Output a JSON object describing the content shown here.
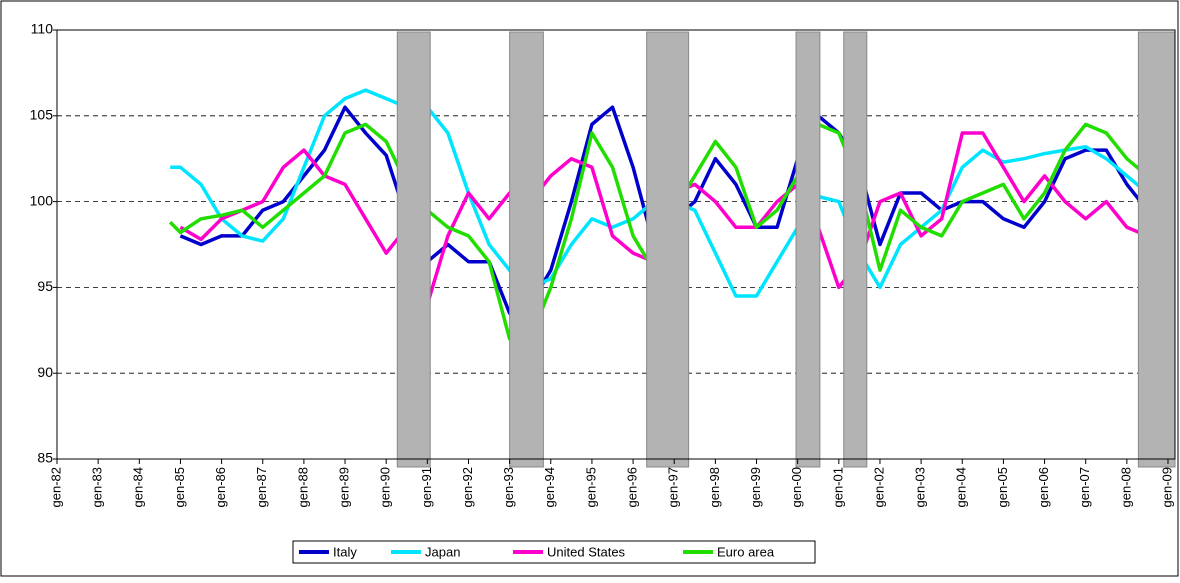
{
  "chart_data": {
    "type": "line",
    "x": [
      1984.75,
      1985,
      1985.5,
      1986,
      1986.5,
      1987,
      1987.5,
      1988,
      1988.5,
      1989,
      1989.5,
      1990,
      1990.5,
      1991,
      1991.5,
      1992,
      1992.5,
      1993,
      1993.5,
      1994,
      1994.5,
      1995,
      1995.5,
      1996,
      1996.5,
      1997,
      1997.5,
      1998,
      1998.5,
      1999,
      1999.5,
      2000,
      2000.5,
      2001,
      2001.5,
      2002,
      2002.5,
      2003,
      2003.5,
      2004,
      2004.5,
      2005,
      2005.5,
      2006,
      2006.5,
      2007,
      2007.5,
      2008,
      2008.5
    ],
    "series": [
      {
        "name": "Italy",
        "color": "#0000cc",
        "values": [
          null,
          98,
          97.5,
          98,
          98,
          99.5,
          100,
          101.5,
          103,
          105.5,
          104,
          102.7,
          99,
          96.5,
          97.5,
          96.5,
          96.5,
          93.5,
          94,
          96,
          100,
          104.5,
          105.5,
          102,
          97.5,
          99,
          100,
          102.5,
          101,
          98.5,
          98.5,
          102.5,
          105,
          104,
          102,
          97.5,
          100.5,
          100.5,
          99.5,
          100,
          100,
          99,
          98.5,
          100,
          102.5,
          103,
          103,
          101,
          99.5
        ]
      },
      {
        "name": "Japan",
        "color": "#00e5ff",
        "values": [
          102,
          102,
          101,
          99,
          98,
          97.7,
          99,
          102,
          105,
          106,
          106.5,
          106,
          105.5,
          105.5,
          104,
          100.5,
          97.5,
          96,
          95,
          95.5,
          97.5,
          99,
          98.5,
          99,
          100,
          100,
          99.5,
          97,
          94.5,
          94.5,
          96.5,
          98.5,
          100.3,
          100,
          97,
          95,
          97.5,
          98.5,
          99.5,
          102,
          103,
          102.3,
          102.5,
          102.8,
          103,
          103.2,
          102.5,
          101.5,
          100.5
        ]
      },
      {
        "name": "United States",
        "color": "#ff00cc",
        "values": [
          null,
          98.5,
          97.8,
          99,
          99.5,
          100,
          102,
          103,
          101.5,
          101,
          99,
          97,
          98.5,
          94,
          98,
          100.5,
          99,
          100.5,
          100,
          101.5,
          102.5,
          102,
          98,
          97,
          96.5,
          100.5,
          101,
          100,
          98.5,
          98.5,
          100,
          101,
          98.5,
          95,
          96.5,
          100,
          100.5,
          98,
          99,
          104,
          104,
          102,
          100,
          101.5,
          100,
          99,
          100,
          98.5,
          98
        ]
      },
      {
        "name": "Euro area",
        "color": "#22dd00",
        "values": [
          98.8,
          98.2,
          99,
          99.2,
          99.5,
          98.5,
          99.5,
          100.5,
          101.5,
          104,
          104.5,
          103.5,
          101,
          99.5,
          98.5,
          98,
          96.5,
          92,
          92,
          95,
          99,
          104,
          102,
          98,
          96,
          99.5,
          101.5,
          103.5,
          102,
          98.5,
          99.5,
          101.5,
          104.5,
          104,
          101,
          96,
          99.5,
          98.5,
          98,
          100,
          100.5,
          101,
          99,
          100.5,
          103,
          104.5,
          104,
          102.5,
          101.5
        ]
      }
    ],
    "shaded_periods": [
      [
        1990.27,
        1991.07
      ],
      [
        1993.0,
        1993.82
      ],
      [
        1996.33,
        1997.35
      ],
      [
        1999.96,
        2000.54
      ],
      [
        2001.12,
        2001.68
      ],
      [
        2008.28,
        2009.17
      ]
    ],
    "shade_color": "#b3b3b3",
    "xlim": [
      1982,
      2009.17
    ],
    "xticks": [
      {
        "value": 1982,
        "label": "gen-82"
      },
      {
        "value": 1983,
        "label": "gen-83"
      },
      {
        "value": 1984,
        "label": "gen-84"
      },
      {
        "value": 1985,
        "label": "gen-85"
      },
      {
        "value": 1986,
        "label": "gen-86"
      },
      {
        "value": 1987,
        "label": "gen-87"
      },
      {
        "value": 1988,
        "label": "gen-88"
      },
      {
        "value": 1989,
        "label": "gen-89"
      },
      {
        "value": 1990,
        "label": "gen-90"
      },
      {
        "value": 1991,
        "label": "gen-91"
      },
      {
        "value": 1992,
        "label": "gen-92"
      },
      {
        "value": 1993,
        "label": "gen-93"
      },
      {
        "value": 1994,
        "label": "gen-94"
      },
      {
        "value": 1995,
        "label": "gen-95"
      },
      {
        "value": 1996,
        "label": "gen-96"
      },
      {
        "value": 1997,
        "label": "gen-97"
      },
      {
        "value": 1998,
        "label": "gen-98"
      },
      {
        "value": 1999,
        "label": "gen-99"
      },
      {
        "value": 2000,
        "label": "gen-00"
      },
      {
        "value": 2001,
        "label": "gen-01"
      },
      {
        "value": 2002,
        "label": "gen-02"
      },
      {
        "value": 2003,
        "label": "gen-03"
      },
      {
        "value": 2004,
        "label": "gen-04"
      },
      {
        "value": 2005,
        "label": "gen-05"
      },
      {
        "value": 2006,
        "label": "gen-06"
      },
      {
        "value": 2007,
        "label": "gen-07"
      },
      {
        "value": 2008,
        "label": "gen-08"
      },
      {
        "value": 2009,
        "label": "gen-09"
      }
    ],
    "ylim": [
      85,
      110
    ],
    "yticks": [
      85,
      90,
      95,
      100,
      105,
      110
    ],
    "grid": true,
    "legend": "bottom"
  }
}
